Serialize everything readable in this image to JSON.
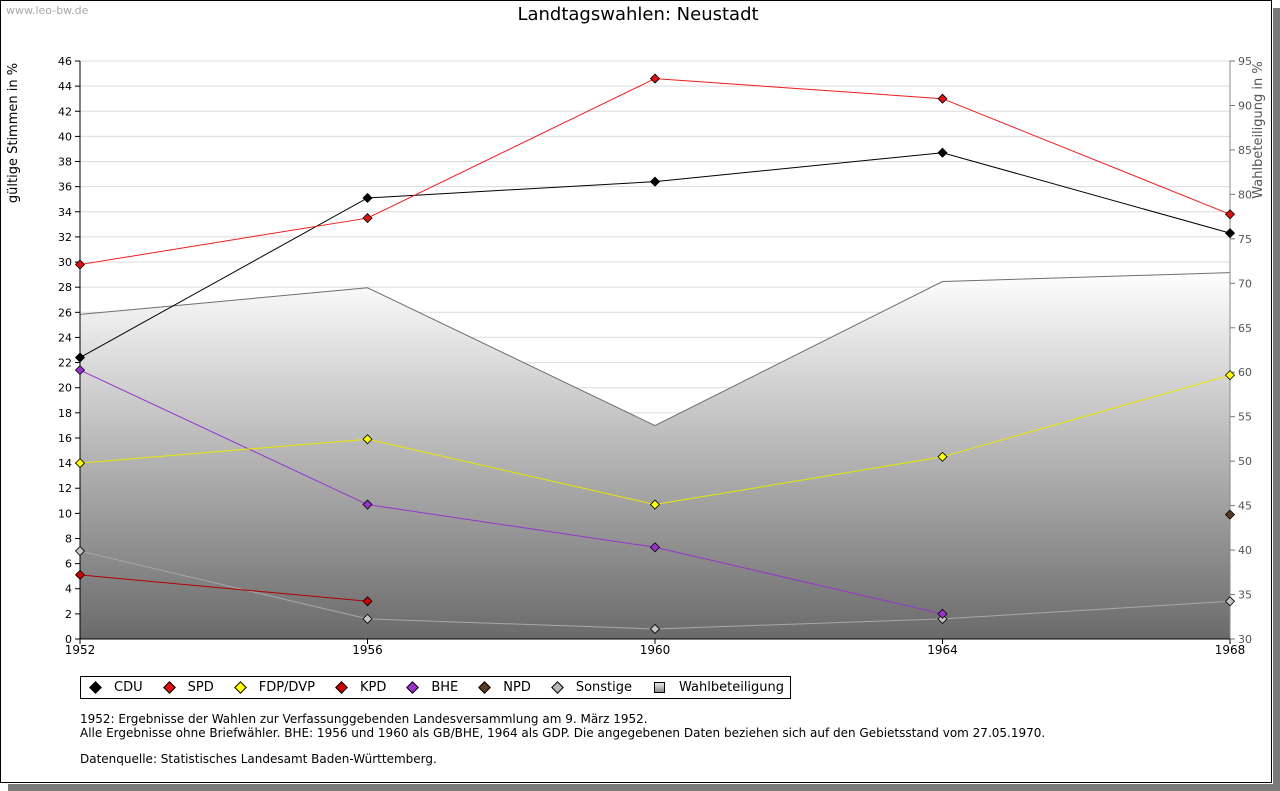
{
  "source_label": "www.leo-bw.de",
  "chart_data": {
    "type": "line",
    "title": "Landtagswahlen: Neustadt",
    "ylabel": "gültige Stimmen in %",
    "ylabel_right": "Wahlbeteiligung in %",
    "x": [
      1952,
      1956,
      1960,
      1964,
      1968
    ],
    "x_tick_labels": [
      "1952",
      "1956",
      "1960",
      "1964",
      "1968"
    ],
    "ylim": [
      0,
      46
    ],
    "y_ticks": [
      0,
      2,
      4,
      6,
      8,
      10,
      12,
      14,
      16,
      18,
      20,
      22,
      24,
      26,
      28,
      30,
      32,
      34,
      36,
      38,
      40,
      42,
      44,
      46
    ],
    "ylim_right": [
      30,
      95
    ],
    "y_ticks_right": [
      30,
      35,
      40,
      45,
      50,
      55,
      60,
      65,
      70,
      75,
      80,
      85,
      90,
      95
    ],
    "grid": true,
    "turnout": {
      "name": "Wahlbeteiligung",
      "values": [
        66.5,
        69.5,
        54.0,
        70.2,
        71.2
      ],
      "fill_top": "#ffffff",
      "fill_bottom": "#6a6a6a",
      "line_color": "#6f6f6f"
    },
    "series": [
      {
        "name": "Sonstige",
        "color": "#a8a8a8",
        "marker": "#c4c4c4",
        "values": [
          7.0,
          1.6,
          0.8,
          1.6,
          3.0
        ]
      },
      {
        "name": "KPD",
        "color": "#b00000",
        "marker": "#cc0000",
        "values": [
          5.1,
          3.0,
          null,
          null,
          null
        ]
      },
      {
        "name": "NPD",
        "color": "#5a3a24",
        "marker": "#5a3a24",
        "values": [
          null,
          null,
          null,
          null,
          9.9
        ]
      },
      {
        "name": "BHE",
        "color": "#9933cc",
        "marker": "#9933cc",
        "values": [
          21.4,
          10.7,
          7.3,
          2.0,
          null
        ]
      },
      {
        "name": "FDP/DVP",
        "color": "#e8e800",
        "marker": "#ffff00",
        "values": [
          14.0,
          15.9,
          10.7,
          14.5,
          21.0
        ]
      },
      {
        "name": "CDU",
        "color": "#000000",
        "marker": "#000000",
        "values": [
          22.4,
          35.1,
          36.4,
          38.7,
          32.3
        ]
      },
      {
        "name": "SPD",
        "color": "#ee1c1c",
        "marker": "#dd1111",
        "values": [
          29.8,
          33.5,
          44.6,
          43.0,
          33.8
        ]
      }
    ]
  },
  "legend": [
    {
      "label": "CDU",
      "color": "#000000",
      "shape": "diamond"
    },
    {
      "label": "SPD",
      "color": "#dd1111",
      "shape": "diamond"
    },
    {
      "label": "FDP/DVP",
      "color": "#ffff00",
      "shape": "diamond"
    },
    {
      "label": "KPD",
      "color": "#cc0000",
      "shape": "diamond"
    },
    {
      "label": "BHE",
      "color": "#9933cc",
      "shape": "diamond"
    },
    {
      "label": "NPD",
      "color": "#5a3a24",
      "shape": "diamond"
    },
    {
      "label": "Sonstige",
      "color": "#b8b8b8",
      "shape": "diamond"
    },
    {
      "label": "Wahlbeteiligung",
      "color": "#bbbbbb",
      "shape": "square"
    }
  ],
  "notes": {
    "line1": "1952: Ergebnisse der Wahlen zur Verfassunggebenden Landesversammlung am 9. März 1952.",
    "line2": "Alle Ergebnisse ohne Briefwähler. BHE: 1956 und 1960 als GB/BHE, 1964 als GDP. Die angegebenen Daten beziehen sich auf den Gebietsstand vom 27.05.1970.",
    "source": "Datenquelle: Statistisches Landesamt Baden-Württemberg."
  }
}
